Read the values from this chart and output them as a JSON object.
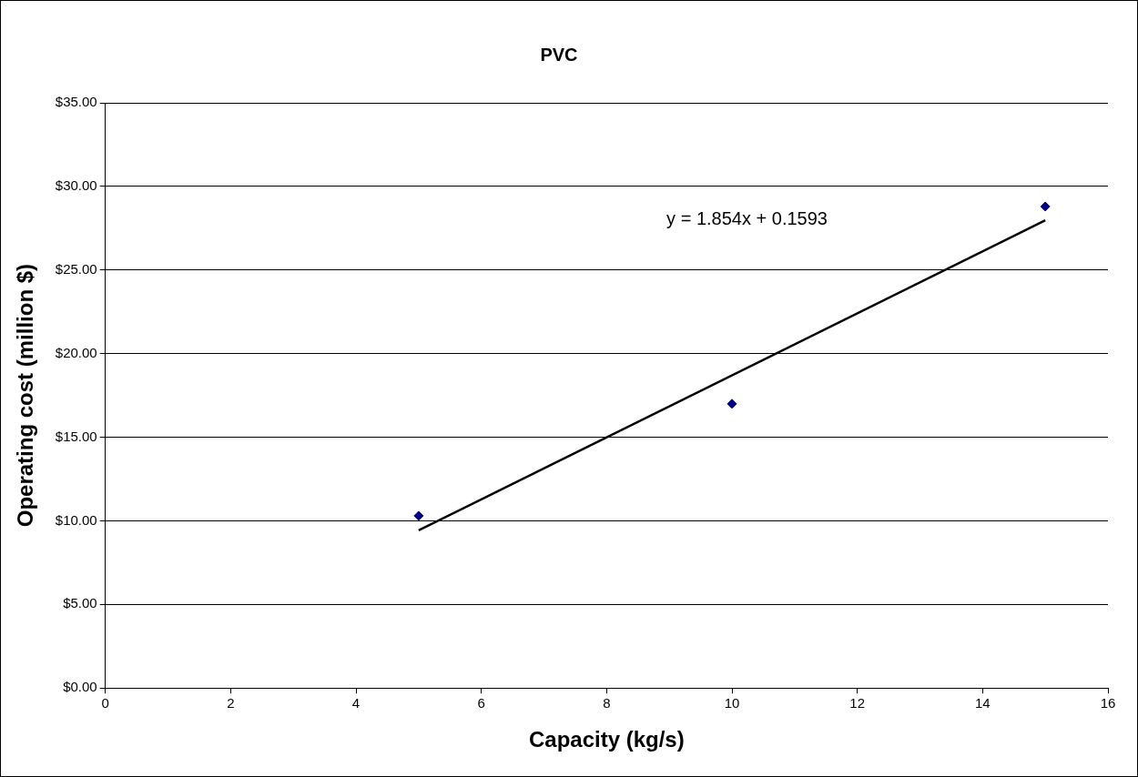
{
  "chart_data": {
    "type": "scatter",
    "title": "PVC",
    "xlabel": "Capacity (kg/s)",
    "ylabel": "Operating cost (million $)",
    "x": [
      5,
      10,
      15
    ],
    "series": [
      {
        "type": "scatter",
        "color": "#000080",
        "marker": "diamond",
        "values": [
          10.3,
          17.0,
          28.8
        ]
      },
      {
        "type": "line",
        "color": "#000000",
        "marker": "none",
        "x": [
          5,
          15
        ],
        "values": [
          9.43,
          27.97
        ]
      }
    ],
    "xlim": [
      0,
      16
    ],
    "xticks": [
      0,
      2,
      4,
      6,
      8,
      10,
      12,
      14,
      16
    ],
    "ylim": [
      0,
      35
    ],
    "yticks": [
      {
        "value": 0,
        "label": "$0.00"
      },
      {
        "value": 5,
        "label": "$5.00"
      },
      {
        "value": 10,
        "label": "$10.00"
      },
      {
        "value": 15,
        "label": "$15.00"
      },
      {
        "value": 20,
        "label": "$20.00"
      },
      {
        "value": 25,
        "label": "$25.00"
      },
      {
        "value": 30,
        "label": "$30.00"
      },
      {
        "value": 35,
        "label": "$35.00"
      }
    ],
    "grid": "y",
    "legend": false,
    "annotations": [
      "y = 1.854x + 0.1593"
    ]
  }
}
